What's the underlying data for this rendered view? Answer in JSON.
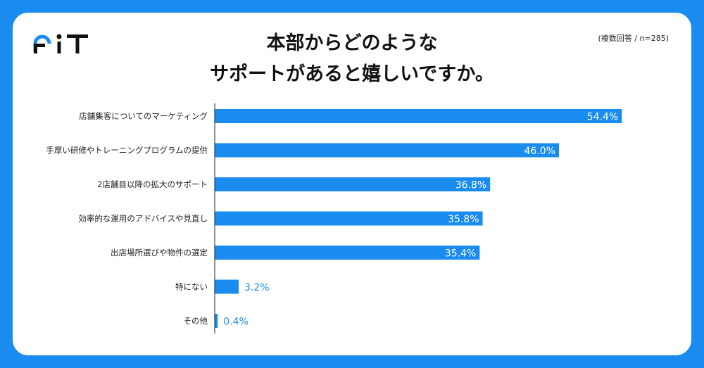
{
  "brand": {
    "logo_text": "FIT",
    "accent": "#1a8cf0"
  },
  "chart_data": {
    "type": "bar",
    "orientation": "horizontal",
    "title_lines": [
      "本部からどのような",
      "サポートがあると嬉しいですか。"
    ],
    "note": "(複数回答 / n=285)",
    "categories": [
      "店舗集客についてのマーケティング",
      "手厚い研修やトレーニングプログラムの提供",
      "2店舗目以降の拡大のサポート",
      "効率的な運用のアドバイスや見直し",
      "出店場所選びや物件の選定",
      "特にない",
      "その他"
    ],
    "values": [
      54.4,
      46.0,
      36.8,
      35.8,
      35.4,
      3.2,
      0.4
    ],
    "labels": [
      "54.4%",
      "46.0%",
      "36.8%",
      "35.8%",
      "35.4%",
      "3.2%",
      "0.4%"
    ],
    "unit": "%",
    "xlim": [
      0,
      60
    ],
    "bar_color": "#1a8cf0"
  }
}
